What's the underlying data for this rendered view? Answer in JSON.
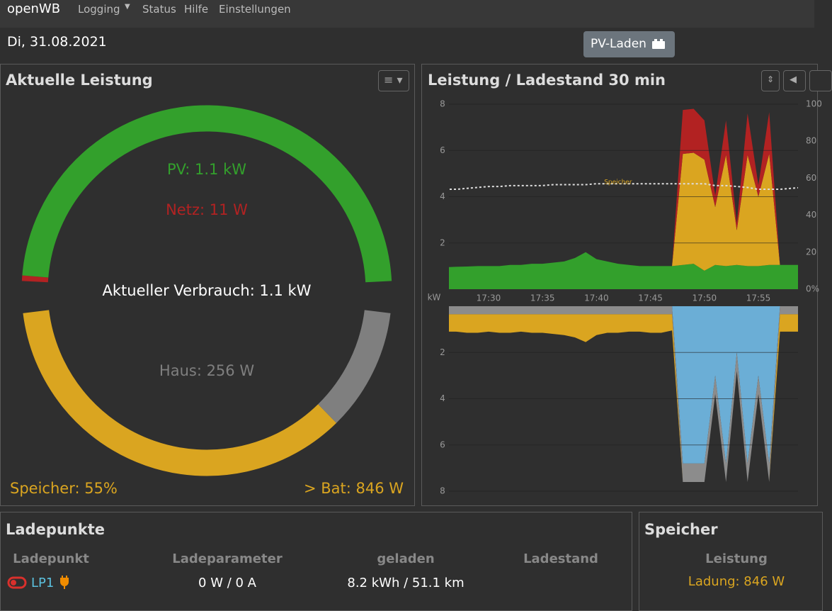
{
  "navbar": {
    "brand": "openWB",
    "items": [
      "Logging",
      "Status",
      "Hilfe",
      "Einstellungen"
    ]
  },
  "date": "Di, 31.08.2021",
  "mode_button": "PV-Laden",
  "current_power": {
    "title": "Aktuelle Leistung",
    "center_label": "Aktueller Verbrauch: 1.1 kW",
    "sources": [
      {
        "value": 11,
        "label": "Netz: 11 W",
        "color": "#b22222"
      },
      {
        "value": 1100,
        "label": "PV: 1.1 kW",
        "color": "#33a02c"
      }
    ],
    "consumers": [
      {
        "value": 846,
        "label": "> Bat: 846 W",
        "color": "#daa520"
      },
      {
        "value": 256,
        "label": "Haus: 256 W",
        "color": "#7f7f7f"
      }
    ],
    "storage_label": "Speicher: 55%"
  },
  "history": {
    "title": "Leistung / Ladestand 30 min",
    "x": [
      "17:26",
      "17:27",
      "17:28",
      "17:29",
      "17:30",
      "17:31",
      "17:32",
      "17:33",
      "17:34",
      "17:35",
      "17:36",
      "17:37",
      "17:38",
      "17:39",
      "17:40",
      "17:41",
      "17:42",
      "17:43",
      "17:44",
      "17:45",
      "17:46",
      "17:47",
      "17:48",
      "17:49",
      "17:50",
      "17:51",
      "17:52",
      "17:53",
      "17:54",
      "17:55",
      "17:56",
      "17:57",
      "17:58",
      "17:59"
    ],
    "xlim": [
      "17:26",
      "17:59"
    ],
    "xticks": [
      "17:30",
      "17:35",
      "17:40",
      "17:45",
      "17:50",
      "17:55"
    ],
    "upper": {
      "ylim": [
        0,
        8
      ],
      "yticks": [
        2,
        4,
        6,
        8
      ],
      "y2lim": [
        0,
        100
      ],
      "y2ticks": [
        {
          "value": 0,
          "label": "0%"
        },
        20,
        40,
        60,
        80,
        100
      ],
      "series": [
        {
          "color": "#33a02c",
          "values": [
            0.95,
            0.97,
            0.98,
            1.0,
            1.0,
            1.0,
            1.05,
            1.05,
            1.1,
            1.1,
            1.15,
            1.2,
            1.35,
            1.6,
            1.3,
            1.2,
            1.1,
            1.05,
            1.0,
            1.0,
            1.0,
            1.0,
            1.05,
            1.1,
            0.8,
            1.05,
            1.0,
            1.05,
            1.0,
            1.0,
            1.05,
            1.05,
            1.05,
            1.05
          ]
        },
        {
          "color": "#daa520",
          "values": [
            0,
            0,
            0,
            0,
            0,
            0,
            0,
            0,
            0,
            0,
            0,
            0,
            0,
            0,
            0,
            0,
            0,
            0,
            0,
            0,
            0,
            0,
            4.8,
            4.8,
            4.8,
            2.5,
            4.8,
            1.5,
            4.8,
            3.0,
            4.8,
            0,
            0,
            0
          ]
        },
        {
          "color": "#b22222",
          "values": [
            0,
            0,
            0,
            0,
            0,
            0,
            0,
            0,
            0,
            0,
            0,
            0,
            0,
            0,
            0,
            0,
            0,
            0,
            0,
            0,
            0,
            0,
            1.9,
            1.9,
            1.7,
            0.5,
            1.5,
            0.3,
            1.8,
            0.5,
            1.8,
            0,
            0,
            0
          ]
        }
      ],
      "soc": {
        "name": "Speicher",
        "color": "#dddddd",
        "label_color": "#daa520",
        "values": [
          54,
          54,
          54.5,
          55,
          55.5,
          55.5,
          56,
          56,
          56,
          56,
          56.5,
          56.5,
          56.5,
          56.5,
          57,
          57,
          57,
          57,
          57,
          57,
          57,
          57,
          57,
          57,
          57,
          56,
          56,
          55.5,
          55,
          54,
          54,
          54,
          54.5,
          55
        ]
      }
    },
    "lower": {
      "unit": "kW",
      "ylim": [
        0,
        8
      ],
      "yticks": [
        2,
        4,
        6,
        8
      ],
      "series": [
        {
          "color": "#6baed6",
          "values": [
            0,
            0,
            0,
            0,
            0,
            0,
            0,
            0,
            0,
            0,
            0,
            0,
            0,
            0,
            0,
            0,
            0,
            0,
            0,
            0,
            0,
            0,
            6.8,
            6.8,
            6.8,
            3.0,
            6.8,
            2.0,
            6.8,
            3.0,
            6.8,
            0,
            0,
            0
          ]
        },
        {
          "color": "#8c8c8c",
          "values": [
            0.35,
            0.35,
            0.35,
            0.35,
            0.35,
            0.35,
            0.35,
            0.35,
            0.35,
            0.35,
            0.35,
            0.35,
            0.35,
            0.35,
            0.35,
            0.35,
            0.35,
            0.35,
            0.35,
            0.35,
            0.35,
            0.35,
            0.8,
            0.8,
            0.8,
            0.8,
            0.8,
            0.8,
            0.8,
            0.8,
            0.8,
            0.35,
            0.35,
            0.35
          ]
        },
        {
          "color": "#daa520",
          "values": [
            0.75,
            0.75,
            0.8,
            0.8,
            0.75,
            0.8,
            0.8,
            0.75,
            0.8,
            0.8,
            0.85,
            0.9,
            1.0,
            1.2,
            0.9,
            0.8,
            0.8,
            0.75,
            0.75,
            0.8,
            0.8,
            0.7,
            0,
            0,
            0,
            0,
            0,
            0,
            0,
            0,
            0,
            0.75,
            0.75,
            0.75
          ]
        }
      ]
    }
  },
  "charge_points": {
    "title": "Ladepunkte",
    "headers": [
      "Ladepunkt",
      "Ladeparameter",
      "geladen",
      "Ladestand"
    ],
    "rows": [
      {
        "name": "LP1",
        "parameters": "0 W / 0 A",
        "charged": "8.2 kWh / 51.1 km"
      }
    ]
  },
  "storage": {
    "title": "Speicher",
    "header": "Leistung",
    "value": "Ladung: 846 W"
  }
}
